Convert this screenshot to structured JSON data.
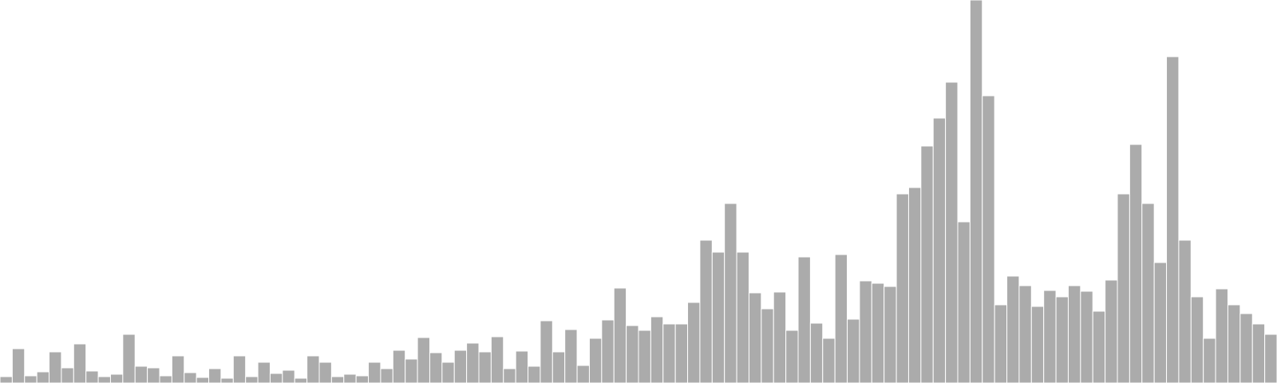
{
  "chart_data": {
    "type": "bar",
    "title": "",
    "xlabel": "",
    "ylabel": "",
    "grid": false,
    "legend": "none",
    "bar_color": "#ababab",
    "edge_color": "#ffffff",
    "background": "#ffffff",
    "ylim": [
      0,
      480
    ],
    "values": [
      8,
      43,
      9,
      14,
      39,
      19,
      49,
      15,
      8,
      11,
      61,
      21,
      19,
      9,
      34,
      13,
      7,
      18,
      6,
      34,
      8,
      26,
      12,
      16,
      6,
      34,
      26,
      8,
      11,
      9,
      26,
      18,
      41,
      30,
      57,
      38,
      26,
      41,
      50,
      39,
      58,
      18,
      40,
      21,
      78,
      39,
      67,
      22,
      56,
      79,
      119,
      72,
      66,
      83,
      74,
      74,
      101,
      179,
      164,
      225,
      164,
      113,
      93,
      114,
      66,
      158,
      75,
      56,
      161,
      80,
      128,
      125,
      121,
      237,
      245,
      297,
      332,
      377,
      202,
      482,
      360,
      98,
      134,
      122,
      96,
      116,
      108,
      122,
      115,
      90,
      129,
      237,
      299,
      225,
      151,
      409,
      179,
      108,
      56,
      118,
      98,
      87,
      74,
      61
    ]
  }
}
